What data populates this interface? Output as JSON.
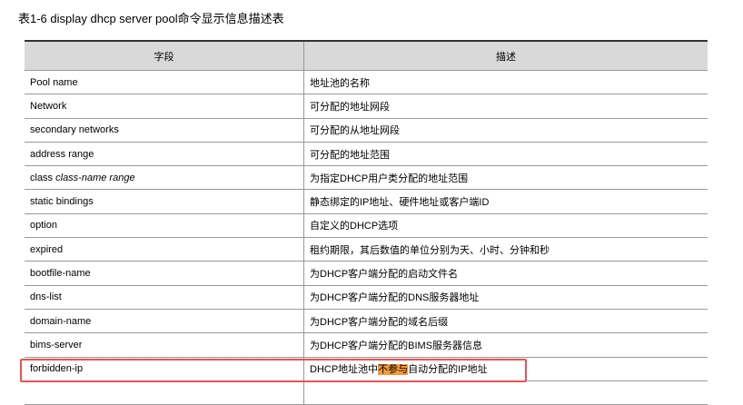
{
  "title": "表1-6 display dhcp server pool命令显示信息描述表",
  "headers": [
    "字段",
    "描述"
  ],
  "rows": [
    {
      "field": "Pool name",
      "desc": "地址池的名称"
    },
    {
      "field": "Network",
      "desc": "可分配的地址网段"
    },
    {
      "field": "secondary networks",
      "desc": "可分配的从地址网段"
    },
    {
      "field": "address range",
      "desc": "可分配的地址范围"
    },
    {
      "field": "class ",
      "field_italic": "class-name range",
      "desc": "为指定DHCP用户类分配的地址范围"
    },
    {
      "field": "static bindings",
      "desc": "静态绑定的IP地址、硬件地址或客户端ID"
    },
    {
      "field": "option",
      "desc": "自定义的DHCP选项"
    },
    {
      "field": "expired",
      "desc": "租约期限，其后数值的单位分别为天、小时、分钟和秒"
    },
    {
      "field": "bootfile-name",
      "desc": "为DHCP客户端分配的启动文件名"
    },
    {
      "field": "dns-list",
      "desc": "为DHCP客户端分配的DNS服务器地址"
    },
    {
      "field": "domain-name",
      "desc": "为DHCP客户端分配的域名后缀"
    },
    {
      "field": "bims-server",
      "desc": "为DHCP客户端分配的BIMS服务器信息"
    }
  ],
  "highlighted_row": {
    "field": "forbidden-ip",
    "desc_before": "DHCP地址池中",
    "desc_highlight": "不参与",
    "desc_after": "自动分配的IP地址"
  },
  "colors": {
    "highlight": "#f39a3a",
    "box": "#f05050",
    "header_bg": "#d9d9d9"
  }
}
